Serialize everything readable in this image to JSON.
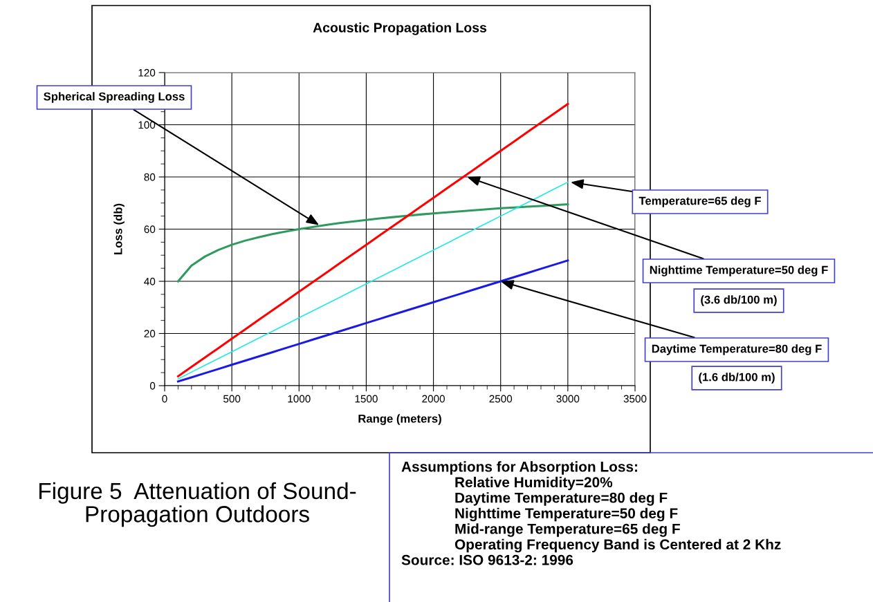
{
  "chart_data": {
    "type": "line",
    "title": "Acoustic Propagation Loss",
    "xlabel": "Range (meters)",
    "ylabel": "Loss (db)",
    "x": [
      100,
      200,
      300,
      400,
      500,
      600,
      700,
      800,
      900,
      1000,
      1100,
      1200,
      1300,
      1400,
      1500,
      1600,
      1700,
      1800,
      1900,
      2000,
      2100,
      2200,
      2300,
      2400,
      2500,
      2600,
      2700,
      2800,
      2900,
      3000
    ],
    "series": [
      {
        "color": "#2e9b5e",
        "values": [
          40,
          46,
          49.5,
          52,
          54,
          55.6,
          56.9,
          58.1,
          59.1,
          60,
          60.8,
          61.6,
          62.3,
          62.9,
          63.5,
          64.1,
          64.6,
          65.1,
          65.6,
          66,
          66.4,
          66.8,
          67.2,
          67.6,
          68,
          68.3,
          68.6,
          68.9,
          69.2,
          69.5
        ]
      },
      {
        "color": "#ff0000",
        "values": [
          3.6,
          7.2,
          10.8,
          14.4,
          18,
          21.6,
          25.2,
          28.8,
          32.4,
          36,
          39.6,
          43.2,
          46.8,
          50.4,
          54,
          57.6,
          61.2,
          64.8,
          68.4,
          72,
          75.6,
          79.2,
          82.8,
          86.4,
          90,
          93.6,
          97.2,
          100.8,
          104.4,
          108
        ]
      },
      {
        "color": "#22e8e8",
        "values": [
          2.6,
          5.2,
          7.8,
          10.4,
          13,
          15.6,
          18.2,
          20.8,
          23.4,
          26,
          28.6,
          31.2,
          33.8,
          36.4,
          39,
          41.6,
          44.2,
          46.8,
          49.4,
          52,
          54.6,
          57.2,
          59.8,
          62.4,
          65,
          67.6,
          70.2,
          72.8,
          75.4,
          78
        ]
      },
      {
        "color": "#1a1ae6",
        "values": [
          1.6,
          3.2,
          4.8,
          6.4,
          8,
          9.6,
          11.2,
          12.8,
          14.4,
          16,
          17.6,
          19.2,
          20.8,
          22.4,
          24,
          25.6,
          27.2,
          28.8,
          30.4,
          32,
          33.6,
          35.2,
          36.8,
          38.4,
          40,
          41.6,
          43.2,
          44.8,
          46.4,
          48
        ]
      }
    ],
    "xlim": [
      0,
      3500
    ],
    "xticks": [
      0,
      500,
      1000,
      1500,
      2000,
      2500,
      3000,
      3500
    ],
    "ylim": [
      0,
      120
    ],
    "yticks": [
      0,
      20,
      40,
      60,
      80,
      100,
      120
    ],
    "grid": true,
    "legend": false,
    "marker": "none",
    "line_style": "solid",
    "annotations": [
      {
        "text": "Spherical Spreading Loss",
        "x": 1150,
        "y": 61.5
      },
      {
        "text": "Temperature=65 deg F",
        "x": 3020,
        "y": 78
      },
      {
        "text": "Nighttime Temperature=50 deg F",
        "x": 2250,
        "y": 80
      },
      "(3.6 db/100 m)",
      {
        "text": "Daytime Temperature=80 deg F",
        "x": 2500,
        "y": 40
      },
      "(1.6 db/100 m)",
      "Figure 5  Attenuation of Sound-\nPropagation Outdoors",
      "Assumptions for Absorption Loss:",
      "Relative Humidity=20%",
      "Daytime Temperature=80 deg F",
      "Nighttime Temperature=50 deg F",
      "Mid-range Temperature=65 deg F",
      "Operating Frequency Band is Centered at 2 Khz",
      "Source: ISO 9613-2: 1996"
    ]
  }
}
